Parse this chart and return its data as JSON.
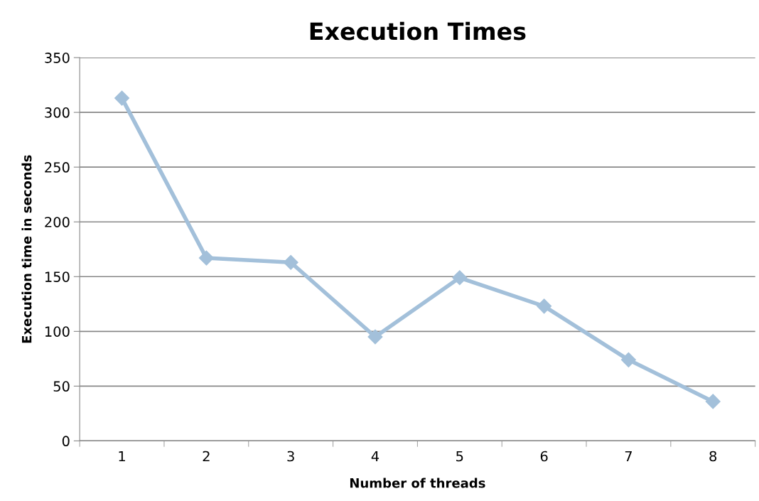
{
  "chart_data": {
    "type": "line",
    "title": "Execution Times",
    "xlabel": "Number of threads",
    "ylabel": "Execution time in seconds",
    "categories": [
      "1",
      "2",
      "3",
      "4",
      "5",
      "6",
      "7",
      "8"
    ],
    "series": [
      {
        "color": "#a3c0da",
        "values": [
          313,
          167,
          163,
          95,
          149,
          123,
          74,
          36
        ]
      }
    ],
    "ylim": [
      0,
      350
    ],
    "yticks": [
      0,
      50,
      100,
      150,
      200,
      250,
      300,
      350
    ],
    "grid": "y",
    "marker": "diamond",
    "line_style": "solid"
  }
}
